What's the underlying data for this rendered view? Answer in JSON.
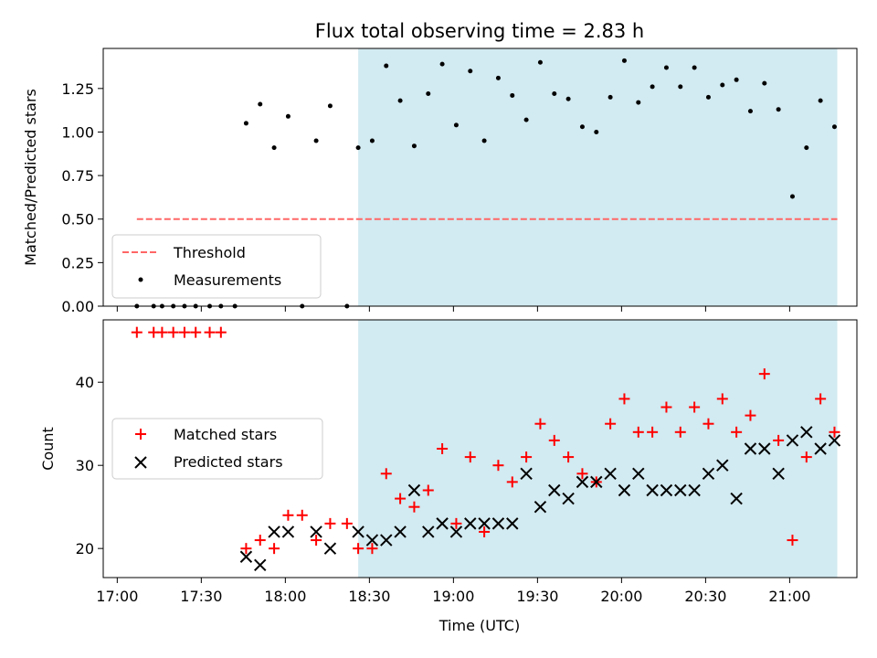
{
  "chart_data": [
    {
      "type": "scatter",
      "title": "Flux total observing time = 2.83 h",
      "ylabel": "Matched/Predicted stars",
      "xlabel": "",
      "ylim": [
        0,
        1.48
      ],
      "yticks": [
        0.0,
        0.25,
        0.5,
        0.75,
        1.0,
        1.25
      ],
      "ytick_labels": [
        "0.00",
        "0.25",
        "0.50",
        "0.75",
        "1.00",
        "1.25"
      ],
      "grid": false,
      "legend_position": "lower-left",
      "observing_window": {
        "start": "18:26",
        "end": "21:17",
        "color": "#add8e6"
      },
      "threshold": {
        "name": "Threshold",
        "value": 0.5,
        "x_start": "17:07",
        "x_end": "21:17",
        "color": "#ff6666"
      },
      "series": [
        {
          "name": "Measurements",
          "color": "#000000",
          "x": [
            "17:07",
            "17:13",
            "17:16",
            "17:20",
            "17:24",
            "17:28",
            "17:33",
            "17:37",
            "17:42",
            "17:46",
            "17:51",
            "17:56",
            "18:01",
            "18:06",
            "18:11",
            "18:16",
            "18:22",
            "18:26",
            "18:31",
            "18:36",
            "18:41",
            "18:46",
            "18:51",
            "18:56",
            "19:01",
            "19:06",
            "19:11",
            "19:16",
            "19:21",
            "19:26",
            "19:31",
            "19:36",
            "19:41",
            "19:46",
            "19:51",
            "19:56",
            "20:01",
            "20:06",
            "20:11",
            "20:16",
            "20:21",
            "20:26",
            "20:31",
            "20:36",
            "20:41",
            "20:46",
            "20:51",
            "20:56",
            "21:01",
            "21:06",
            "21:11",
            "21:16"
          ],
          "y": [
            0,
            0,
            0,
            0,
            0,
            0,
            0,
            0,
            0,
            1.05,
            1.16,
            0.91,
            1.09,
            0,
            0.95,
            1.15,
            0,
            0.91,
            0.95,
            1.38,
            1.18,
            0.92,
            1.22,
            1.39,
            1.04,
            1.35,
            0.95,
            1.31,
            1.21,
            1.07,
            1.4,
            1.22,
            1.19,
            1.03,
            1.0,
            1.2,
            1.41,
            1.17,
            1.26,
            1.37,
            1.26,
            1.37,
            1.2,
            1.27,
            1.3,
            1.12,
            1.28,
            1.13,
            0.63,
            0.91,
            1.18,
            1.03
          ]
        }
      ]
    },
    {
      "type": "scatter",
      "title": "",
      "ylabel": "Count",
      "xlabel": "Time (UTC)",
      "ylim": [
        16.5,
        47.5
      ],
      "yticks": [
        20,
        30,
        40
      ],
      "ytick_labels": [
        "20",
        "30",
        "40"
      ],
      "xlim": [
        "16:55",
        "21:24"
      ],
      "xticks": [
        "17:00",
        "17:30",
        "18:00",
        "18:30",
        "19:00",
        "19:30",
        "20:00",
        "20:30",
        "21:00"
      ],
      "xtick_labels": [
        "17:00",
        "17:30",
        "18:00",
        "18:30",
        "19:00",
        "19:30",
        "20:00",
        "20:30",
        "21:00"
      ],
      "grid": false,
      "legend_position": "center-left",
      "observing_window": {
        "start": "18:26",
        "end": "21:17",
        "color": "#add8e6"
      },
      "series": [
        {
          "name": "Matched stars",
          "marker": "plus",
          "color": "#ff0000",
          "x": [
            "17:07",
            "17:13",
            "17:16",
            "17:20",
            "17:24",
            "17:28",
            "17:33",
            "17:37",
            "17:46",
            "17:51",
            "17:56",
            "18:01",
            "18:06",
            "18:11",
            "18:16",
            "18:22",
            "18:26",
            "18:31",
            "18:36",
            "18:41",
            "18:46",
            "18:51",
            "18:56",
            "19:01",
            "19:06",
            "19:11",
            "19:16",
            "19:21",
            "19:26",
            "19:31",
            "19:36",
            "19:41",
            "19:46",
            "19:51",
            "19:56",
            "20:01",
            "20:06",
            "20:11",
            "20:16",
            "20:21",
            "20:26",
            "20:31",
            "20:36",
            "20:41",
            "20:46",
            "20:51",
            "20:56",
            "21:01",
            "21:06",
            "21:11",
            "21:16"
          ],
          "y": [
            46,
            46,
            46,
            46,
            46,
            46,
            46,
            46,
            20,
            21,
            20,
            24,
            24,
            21,
            23,
            23,
            20,
            20,
            29,
            26,
            25,
            27,
            32,
            23,
            31,
            22,
            30,
            28,
            31,
            35,
            33,
            31,
            29,
            28,
            35,
            38,
            34,
            34,
            37,
            34,
            37,
            35,
            38,
            34,
            36,
            41,
            33,
            21,
            31,
            38,
            34
          ]
        },
        {
          "name": "Predicted stars",
          "marker": "x",
          "color": "#000000",
          "x": [
            "17:46",
            "17:51",
            "17:56",
            "18:01",
            "18:11",
            "18:16",
            "18:26",
            "18:31",
            "18:36",
            "18:41",
            "18:46",
            "18:51",
            "18:56",
            "19:01",
            "19:06",
            "19:11",
            "19:16",
            "19:21",
            "19:26",
            "19:31",
            "19:36",
            "19:41",
            "19:46",
            "19:51",
            "19:56",
            "20:01",
            "20:06",
            "20:11",
            "20:16",
            "20:21",
            "20:26",
            "20:31",
            "20:36",
            "20:41",
            "20:46",
            "20:51",
            "20:56",
            "21:01",
            "21:06",
            "21:11",
            "21:16"
          ],
          "y": [
            19,
            18,
            22,
            22,
            22,
            20,
            22,
            21,
            21,
            22,
            27,
            22,
            23,
            22,
            23,
            23,
            23,
            23,
            29,
            25,
            27,
            26,
            28,
            28,
            29,
            27,
            29,
            27,
            27,
            27,
            27,
            29,
            30,
            26,
            32,
            32,
            29,
            33,
            34,
            32,
            33
          ]
        }
      ]
    }
  ]
}
